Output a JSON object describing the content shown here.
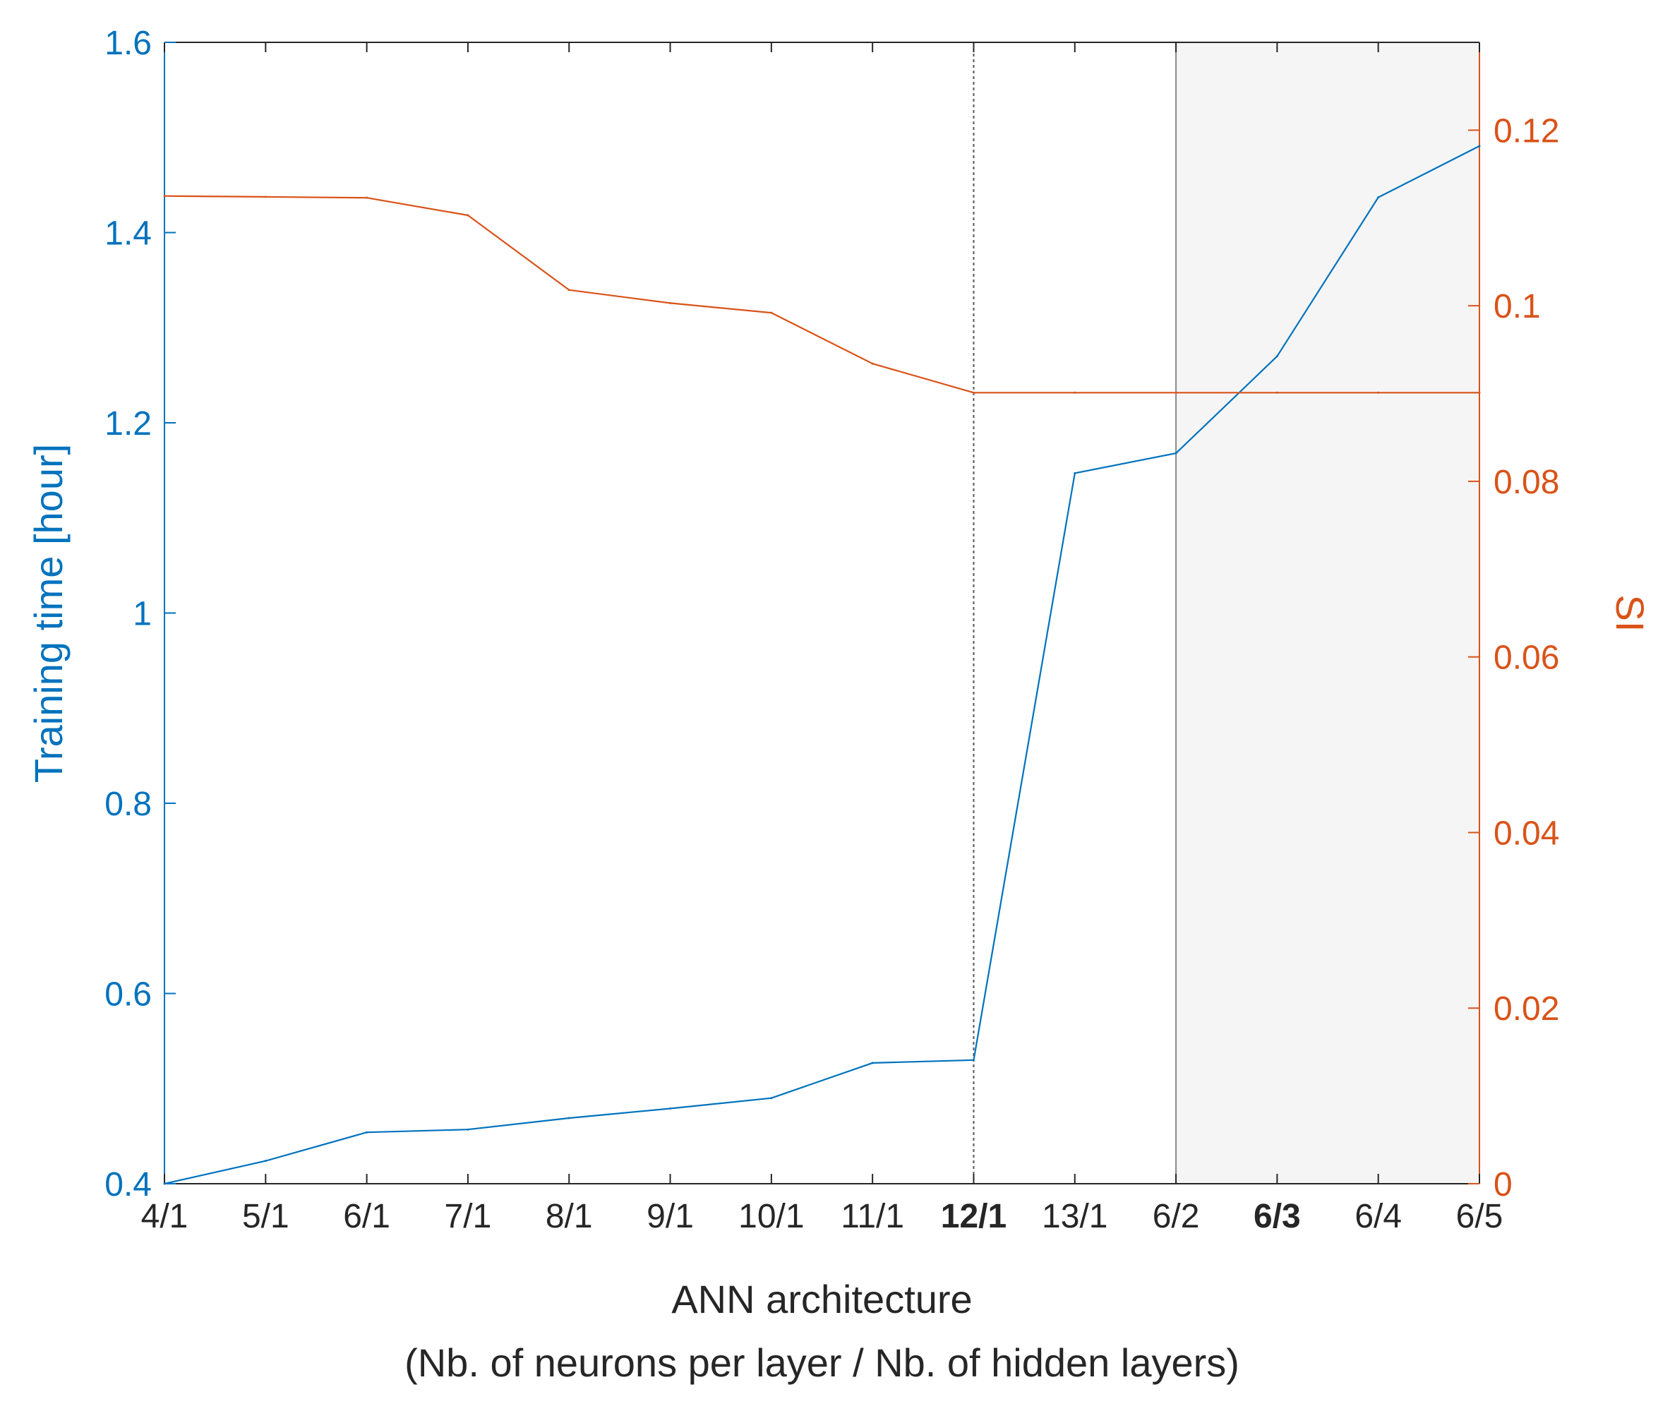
{
  "chart_data": {
    "type": "line",
    "x_categories": [
      "4/1",
      "5/1",
      "6/1",
      "7/1",
      "8/1",
      "9/1",
      "10/1",
      "11/1",
      "12/1",
      "13/1",
      "6/2",
      "6/3",
      "6/4",
      "6/5"
    ],
    "bold_categories": [
      "12/1",
      "6/3"
    ],
    "xlabel": "ANN architecture",
    "xlabel_line2": "(Nb. of neurons per layer / Nb. of hidden layers)",
    "y_left": {
      "label": "Training time [hour]",
      "ticks": [
        "0.4",
        "0.6",
        "0.8",
        "1",
        "1.2",
        "1.4",
        "1.6"
      ],
      "range": [
        0.4,
        1.6
      ],
      "color": "#0072BD"
    },
    "y_right": {
      "label": "SI",
      "ticks": [
        "0",
        "0.02",
        "0.04",
        "0.06",
        "0.08",
        "0.1",
        "0.12"
      ],
      "range": [
        0,
        0.13
      ],
      "color": "#D95319"
    },
    "series": [
      {
        "axis": "left",
        "color": "#0072BD",
        "values": [
          0.4,
          0.424,
          0.454,
          0.457,
          0.469,
          0.479,
          0.49,
          0.527,
          0.53,
          1.147,
          1.168,
          1.27,
          1.437,
          1.491
        ]
      },
      {
        "axis": "right",
        "color": "#D95319",
        "values": [
          0.1125,
          0.1124,
          0.1123,
          0.1103,
          0.1018,
          0.1003,
          0.0992,
          0.0934,
          0.0901,
          0.0901,
          0.0901,
          0.0901,
          0.0901,
          0.0901
        ]
      }
    ],
    "marker_line_category": "12/1",
    "shaded_region_categories": [
      "6/2",
      "6/5"
    ],
    "shade_color": "#f5f5f5",
    "grid": false
  }
}
